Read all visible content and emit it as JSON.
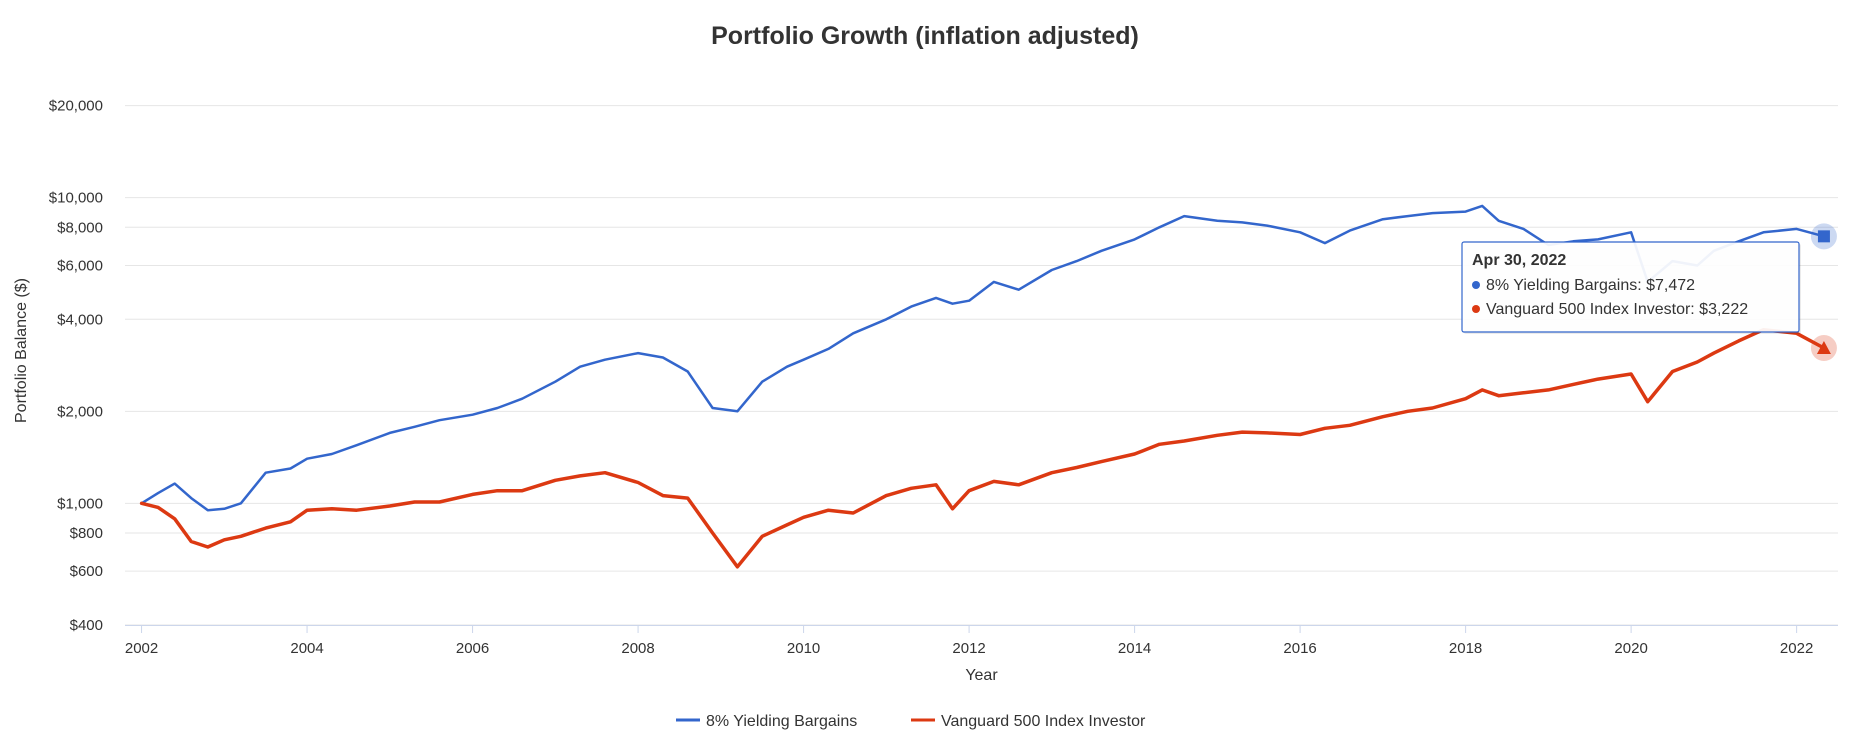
{
  "chart_data": {
    "type": "line",
    "title": "Portfolio Growth (inflation adjusted)",
    "xlabel": "Year",
    "ylabel": "Portfolio Balance ($)",
    "yscale": "log",
    "xlim": [
      2001.8,
      2022.5
    ],
    "ylim": [
      400,
      25000
    ],
    "grid": "horizontal",
    "legend_position": "bottom-center",
    "x_tick_labels": [
      "2002",
      "2004",
      "2006",
      "2008",
      "2010",
      "2012",
      "2014",
      "2016",
      "2018",
      "2020",
      "2022"
    ],
    "x_ticks": [
      2002,
      2004,
      2006,
      2008,
      2010,
      2012,
      2014,
      2016,
      2018,
      2020,
      2022
    ],
    "y_ticks": [
      400,
      600,
      800,
      1000,
      2000,
      4000,
      6000,
      8000,
      10000,
      20000
    ],
    "y_tick_labels": [
      "$400",
      "$600",
      "$800",
      "$1,000",
      "$2,000",
      "$4,000",
      "$6,000",
      "$8,000",
      "$10,000",
      "$20,000"
    ],
    "series": [
      {
        "name": "8% Yielding Bargains",
        "color": "#3366cc",
        "x": [
          2002.0,
          2002.2,
          2002.4,
          2002.6,
          2002.8,
          2003.0,
          2003.2,
          2003.5,
          2003.8,
          2004.0,
          2004.3,
          2004.6,
          2005.0,
          2005.3,
          2005.6,
          2006.0,
          2006.3,
          2006.6,
          2007.0,
          2007.3,
          2007.6,
          2008.0,
          2008.3,
          2008.6,
          2008.9,
          2009.2,
          2009.5,
          2009.8,
          2010.0,
          2010.3,
          2010.6,
          2011.0,
          2011.3,
          2011.6,
          2011.8,
          2012.0,
          2012.3,
          2012.6,
          2013.0,
          2013.3,
          2013.6,
          2014.0,
          2014.3,
          2014.6,
          2015.0,
          2015.3,
          2015.6,
          2016.0,
          2016.3,
          2016.6,
          2017.0,
          2017.3,
          2017.6,
          2018.0,
          2018.2,
          2018.4,
          2018.7,
          2019.0,
          2019.3,
          2019.6,
          2020.0,
          2020.2,
          2020.5,
          2020.8,
          2021.0,
          2021.3,
          2021.6,
          2022.0,
          2022.33
        ],
        "values": [
          1000,
          1080,
          1160,
          1040,
          950,
          960,
          1000,
          1260,
          1300,
          1400,
          1450,
          1550,
          1700,
          1780,
          1870,
          1950,
          2050,
          2200,
          2500,
          2800,
          2950,
          3100,
          3000,
          2700,
          2050,
          2000,
          2500,
          2800,
          2950,
          3200,
          3600,
          4000,
          4400,
          4700,
          4500,
          4600,
          5300,
          5000,
          5800,
          6200,
          6700,
          7300,
          8000,
          8700,
          8400,
          8300,
          8100,
          7700,
          7100,
          7800,
          8500,
          8700,
          8900,
          9000,
          9400,
          8400,
          7900,
          7000,
          7200,
          7300,
          7700,
          5300,
          6200,
          6000,
          6700,
          7200,
          7700,
          7900,
          7472
        ]
      },
      {
        "name": "Vanguard 500 Index Investor",
        "color": "#dc3912",
        "x": [
          2002.0,
          2002.2,
          2002.4,
          2002.6,
          2002.8,
          2003.0,
          2003.2,
          2003.5,
          2003.8,
          2004.0,
          2004.3,
          2004.6,
          2005.0,
          2005.3,
          2005.6,
          2006.0,
          2006.3,
          2006.6,
          2007.0,
          2007.3,
          2007.6,
          2008.0,
          2008.3,
          2008.6,
          2008.9,
          2009.2,
          2009.5,
          2009.8,
          2010.0,
          2010.3,
          2010.6,
          2011.0,
          2011.3,
          2011.6,
          2011.8,
          2012.0,
          2012.3,
          2012.6,
          2013.0,
          2013.3,
          2013.6,
          2014.0,
          2014.3,
          2014.6,
          2015.0,
          2015.3,
          2015.6,
          2016.0,
          2016.3,
          2016.6,
          2017.0,
          2017.3,
          2017.6,
          2018.0,
          2018.2,
          2018.4,
          2018.7,
          2019.0,
          2019.3,
          2019.6,
          2020.0,
          2020.2,
          2020.5,
          2020.8,
          2021.0,
          2021.3,
          2021.6,
          2022.0,
          2022.33
        ],
        "values": [
          1000,
          970,
          890,
          750,
          720,
          760,
          780,
          830,
          870,
          950,
          960,
          950,
          980,
          1010,
          1010,
          1070,
          1100,
          1100,
          1190,
          1230,
          1260,
          1170,
          1060,
          1040,
          800,
          620,
          780,
          850,
          900,
          950,
          930,
          1060,
          1120,
          1150,
          960,
          1100,
          1180,
          1150,
          1260,
          1310,
          1370,
          1450,
          1560,
          1600,
          1670,
          1710,
          1700,
          1680,
          1760,
          1800,
          1920,
          2000,
          2050,
          2200,
          2350,
          2250,
          2300,
          2350,
          2450,
          2550,
          2650,
          2150,
          2700,
          2900,
          3100,
          3400,
          3700,
          3600,
          3222
        ]
      }
    ],
    "tooltip": {
      "date": "Apr 30, 2022",
      "x": 2022.33,
      "rows": [
        {
          "label": "8% Yielding Bargains: $7,472",
          "color": "#3366cc"
        },
        {
          "label": "Vanguard 500 Index Investor: $3,222",
          "color": "#dc3912"
        }
      ]
    }
  }
}
